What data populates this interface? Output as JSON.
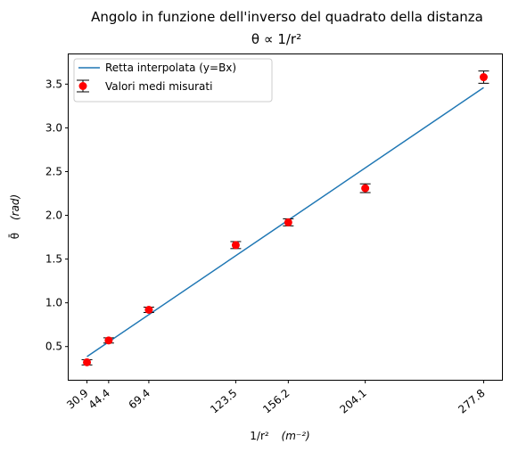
{
  "chart_data": {
    "type": "scatter",
    "title": "Angolo in funzione dell'inverso del quadrato della distanza",
    "subtitle": "θ ∝ 1/r²",
    "xlabel_main": "1/r²",
    "xlabel_unit": "(m⁻²)",
    "ylabel_main": "θ̄",
    "ylabel_unit": "(rad)",
    "xlim": [
      19.5,
      289.2
    ],
    "ylim": [
      0.12,
      3.84
    ],
    "x_ticks": [
      "30.9",
      "44.4",
      "69.4",
      "123.5",
      "156.2",
      "204.1",
      "277.8"
    ],
    "y_ticks": [
      "0.5",
      "1.0",
      "1.5",
      "2.0",
      "2.5",
      "3.0",
      "3.5"
    ],
    "grid": false,
    "legend_placement": "top-left",
    "series": [
      {
        "name": "Retta interpolata (y=Bx)",
        "kind": "line",
        "color": "#1f77b4",
        "x": [
          30.9,
          277.8
        ],
        "y": [
          0.385,
          3.46
        ]
      },
      {
        "name": "Valori medi misurati",
        "kind": "errorbar",
        "color": "#ff0000",
        "errorbar_color": "#000000",
        "x": [
          30.9,
          44.4,
          69.4,
          123.5,
          156.2,
          204.1,
          277.8
        ],
        "y": [
          0.32,
          0.57,
          0.92,
          1.66,
          1.92,
          2.31,
          3.58
        ],
        "yerr": [
          0.03,
          0.03,
          0.03,
          0.04,
          0.04,
          0.05,
          0.07
        ]
      }
    ]
  }
}
